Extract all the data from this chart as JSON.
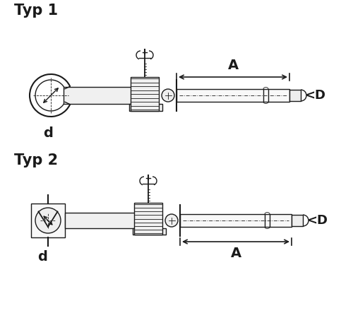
{
  "bg_color": "#ffffff",
  "line_color": "#1a1a1a",
  "title1": "Typ 1",
  "title2": "Typ 2",
  "label_A": "A",
  "label_D": "<D",
  "label_d": "d",
  "title_fontsize": 13,
  "label_fontsize": 12,
  "dim_fontsize": 14
}
